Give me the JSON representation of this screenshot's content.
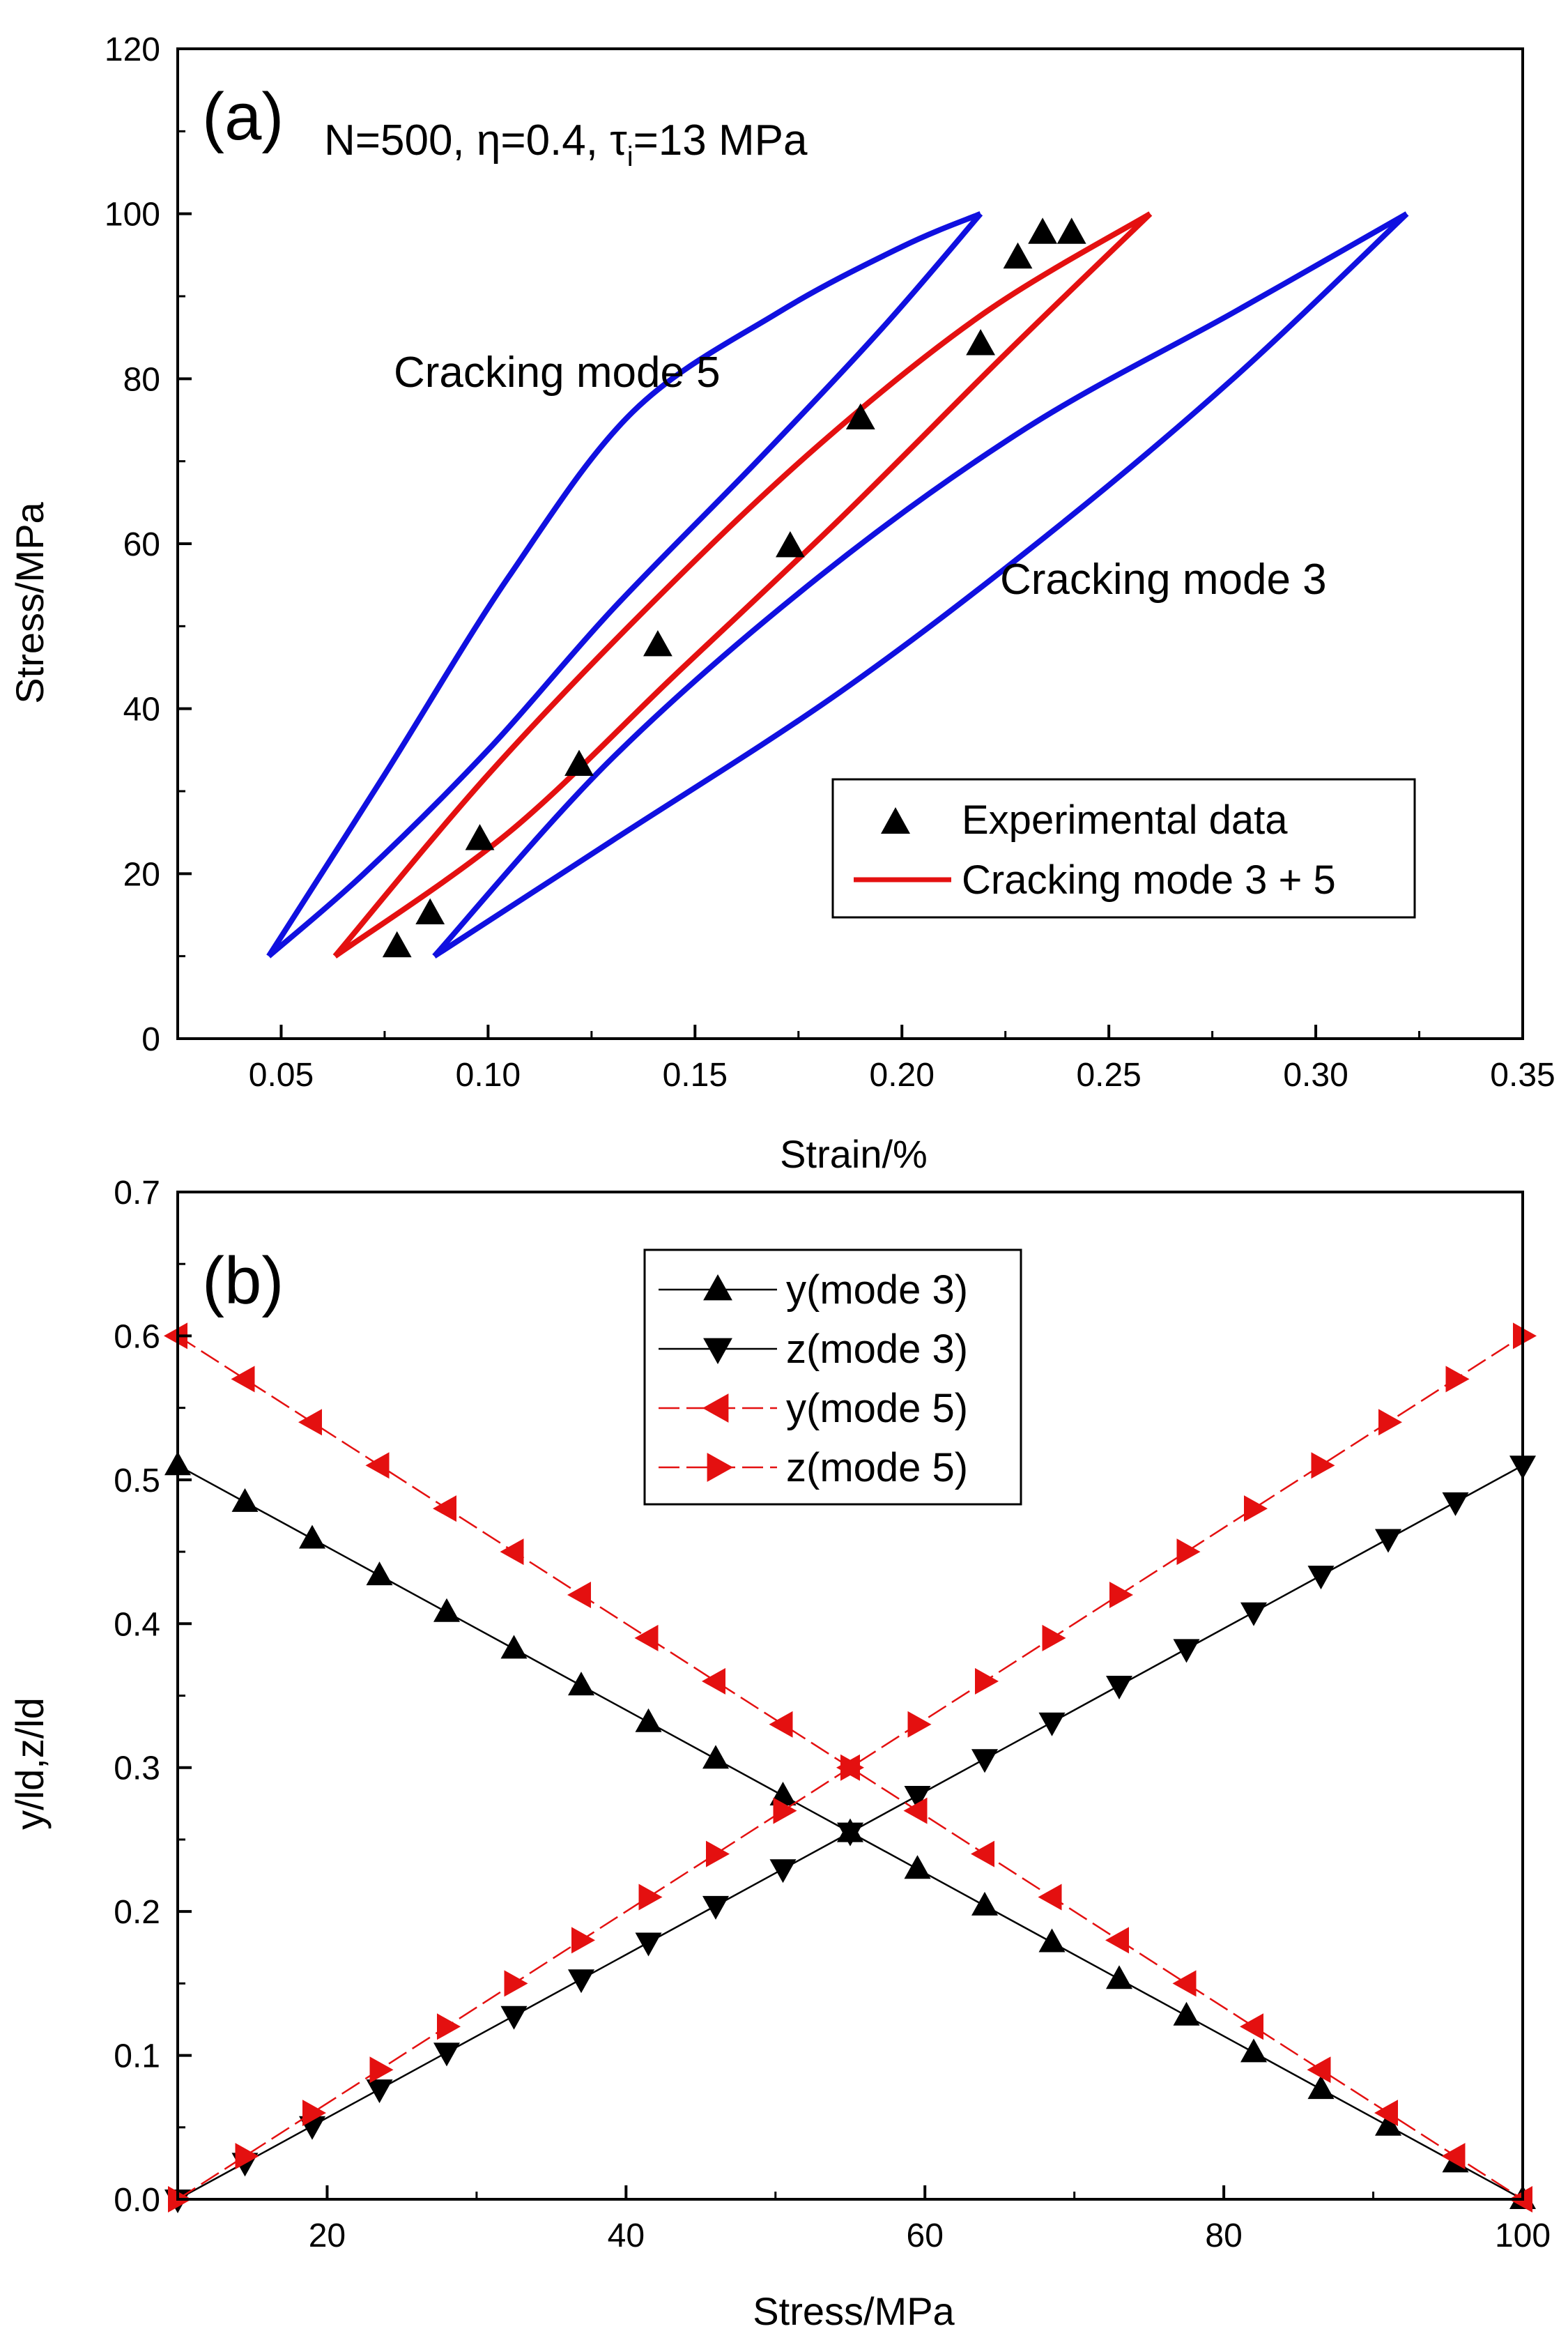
{
  "colors": {
    "blue": "#1010e0",
    "red": "#e41010",
    "black": "#000000"
  },
  "chart_data": [
    {
      "type": "line",
      "panel_label": "(a)",
      "title": "N=500, η=0.4, τ",
      "title_subscript": "i",
      "title_suffix": "=13 MPa",
      "xlabel": "Strain/%",
      "ylabel": "Stress/MPa",
      "xlim": [
        0.025,
        0.35
      ],
      "ylim": [
        0,
        120
      ],
      "xticks": [
        "0.05",
        "0.10",
        "0.15",
        "0.20",
        "0.25",
        "0.30",
        "0.35"
      ],
      "yticks": [
        "0",
        "20",
        "40",
        "60",
        "80",
        "100",
        "120"
      ],
      "annotations": [
        "Cracking mode 5",
        "Cracking mode 3"
      ],
      "legend": {
        "position": "lower-right",
        "entries": [
          "Experimental data",
          "Cracking mode 3 + 5"
        ]
      },
      "series": [
        {
          "name": "Cracking mode 5",
          "color": "#1010e0",
          "loading": [
            [
              0.047,
              10
            ],
            [
              0.075,
              32
            ],
            [
              0.105,
              56
            ],
            [
              0.135,
              76
            ],
            [
              0.17,
              88
            ],
            [
              0.2,
              96
            ],
            [
              0.219,
              100
            ]
          ],
          "unloading": [
            [
              0.219,
              100
            ],
            [
              0.195,
              86
            ],
            [
              0.165,
              70
            ],
            [
              0.13,
              52
            ],
            [
              0.1,
              35
            ],
            [
              0.07,
              20
            ],
            [
              0.047,
              10
            ]
          ]
        },
        {
          "name": "Cracking mode 3",
          "color": "#1010e0",
          "loading": [
            [
              0.087,
              10
            ],
            [
              0.13,
              34
            ],
            [
              0.18,
              56
            ],
            [
              0.23,
              74
            ],
            [
              0.28,
              88
            ],
            [
              0.322,
              100
            ]
          ],
          "unloading": [
            [
              0.322,
              100
            ],
            [
              0.28,
              80
            ],
            [
              0.235,
              61
            ],
            [
              0.185,
              42
            ],
            [
              0.13,
              24
            ],
            [
              0.087,
              10
            ]
          ]
        },
        {
          "name": "Cracking mode 3 + 5",
          "color": "#e41010",
          "loading": [
            [
              0.063,
              10
            ],
            [
              0.1,
              32
            ],
            [
              0.14,
              53
            ],
            [
              0.18,
              72
            ],
            [
              0.22,
              88
            ],
            [
              0.26,
              100
            ]
          ],
          "unloading": [
            [
              0.26,
              100
            ],
            [
              0.225,
              83
            ],
            [
              0.185,
              63
            ],
            [
              0.145,
              44
            ],
            [
              0.105,
              25
            ],
            [
              0.063,
              10
            ]
          ]
        },
        {
          "name": "Experimental data",
          "color": "#000000",
          "points": [
            [
              0.078,
              11.5
            ],
            [
              0.086,
              15.5
            ],
            [
              0.098,
              24.5
            ],
            [
              0.122,
              33.5
            ],
            [
              0.141,
              48
            ],
            [
              0.173,
              60
            ],
            [
              0.19,
              75.5
            ],
            [
              0.219,
              84.5
            ],
            [
              0.228,
              95
            ],
            [
              0.234,
              98
            ],
            [
              0.241,
              98
            ]
          ]
        }
      ]
    },
    {
      "type": "line",
      "panel_label": "(b)",
      "xlabel": "Stress/MPa",
      "ylabel": "y/ld,z/ld",
      "xlim": [
        10,
        100
      ],
      "ylim": [
        0,
        0.7
      ],
      "xticks": [
        "20",
        "40",
        "60",
        "80",
        "100"
      ],
      "yticks": [
        "0.0",
        "0.1",
        "0.2",
        "0.3",
        "0.4",
        "0.5",
        "0.6",
        "0.7"
      ],
      "legend": {
        "position": "top-center",
        "entries": [
          "y(mode 3)",
          "z(mode 3)",
          "y(mode 5)",
          "z(mode 5)"
        ]
      },
      "series": [
        {
          "name": "y(mode 3)",
          "color": "#000000",
          "marker": "triangle-up",
          "dashed": false,
          "x_start": 10,
          "x_end": 100,
          "y_start": 0.51,
          "y_end": 0.0,
          "n_points": 21
        },
        {
          "name": "z(mode 3)",
          "color": "#000000",
          "marker": "triangle-down",
          "dashed": false,
          "x_start": 10,
          "x_end": 100,
          "y_start": 0.0,
          "y_end": 0.51,
          "n_points": 21
        },
        {
          "name": "y(mode 5)",
          "color": "#e41010",
          "marker": "triangle-left",
          "dashed": true,
          "x_start": 10,
          "x_end": 100,
          "y_start": 0.6,
          "y_end": 0.0,
          "n_points": 21
        },
        {
          "name": "z(mode 5)",
          "color": "#e41010",
          "marker": "triangle-right",
          "dashed": true,
          "x_start": 10,
          "x_end": 100,
          "y_start": 0.0,
          "y_end": 0.6,
          "n_points": 21
        }
      ]
    }
  ]
}
